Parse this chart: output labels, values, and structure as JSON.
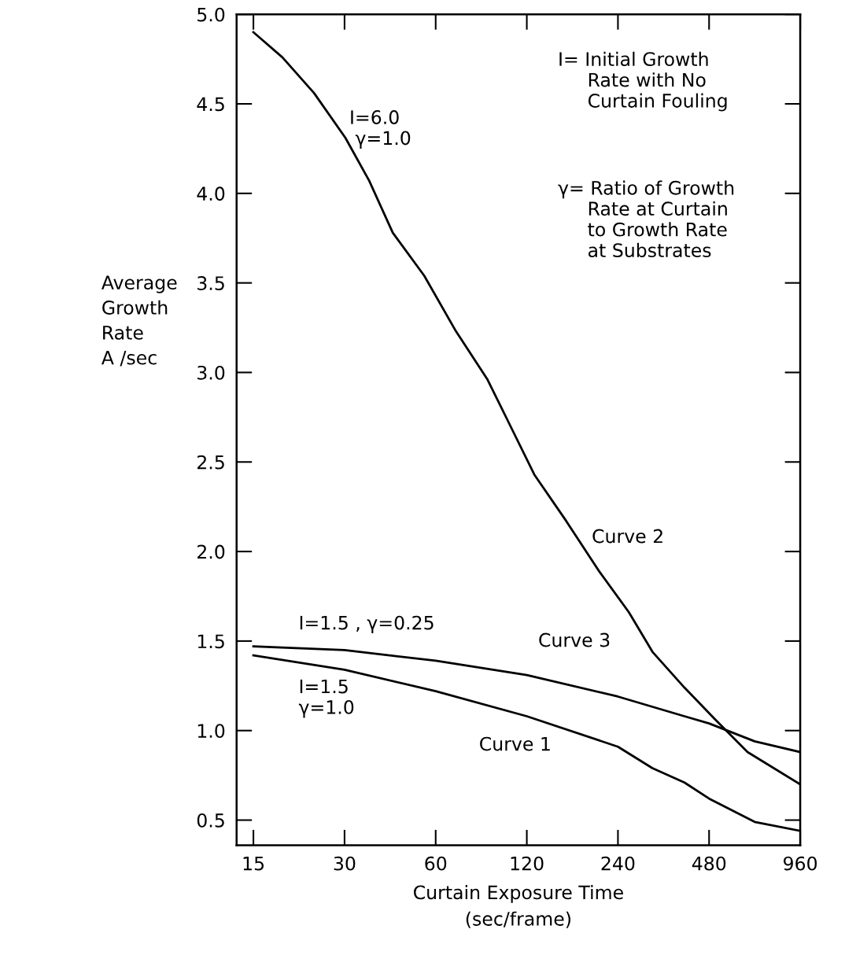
{
  "chart_data": {
    "type": "line",
    "xlabel": "Curtain Exposure Time\n(sec/frame)",
    "ylabel": "Average\nGrowth\nRate\nA /sec",
    "log": "x",
    "grid": false,
    "legend": false,
    "marker": "none",
    "line_style": "solid",
    "xlim": [
      13.2,
      960
    ],
    "ylim": [
      0.36,
      5.0
    ],
    "xticks": [
      15,
      30,
      60,
      120,
      240,
      480,
      960
    ],
    "yticks": [
      {
        "value": 0.5,
        "label": "0.5"
      },
      {
        "value": 1.0,
        "label": "1.0"
      },
      {
        "value": 1.5,
        "label": "1.5"
      },
      {
        "value": 2.0,
        "label": "2.0"
      },
      {
        "value": 2.5,
        "label": "2.5"
      },
      {
        "value": 3.0,
        "label": "3.0"
      },
      {
        "value": 3.5,
        "label": "3.5"
      },
      {
        "value": 4.0,
        "label": "4.0"
      },
      {
        "value": 4.5,
        "label": "4.5"
      },
      {
        "value": 5.0,
        "label": "5.0"
      }
    ],
    "series": [
      {
        "name": "Curve 2",
        "color": "#000000",
        "x": [
          15,
          18.7,
          23.8,
          30.2,
          36.2,
          43.3,
          55,
          70,
          89,
          106,
          127,
          162,
          206,
          261,
          312,
          398,
          504,
          643,
          960
        ],
        "values": [
          4.9,
          4.76,
          4.56,
          4.31,
          4.07,
          3.78,
          3.54,
          3.23,
          2.96,
          2.7,
          2.43,
          2.17,
          1.9,
          1.66,
          1.44,
          1.24,
          1.06,
          0.88,
          0.7
        ]
      },
      {
        "name": "Curve 3",
        "color": "#000000",
        "x": [
          15,
          30,
          60,
          120,
          240,
          398,
          480,
          679,
          960
        ],
        "values": [
          1.47,
          1.45,
          1.39,
          1.31,
          1.19,
          1.08,
          1.04,
          0.94,
          0.88
        ]
      },
      {
        "name": "Curve 1",
        "color": "#000000",
        "x": [
          15,
          30,
          60,
          120,
          240,
          312,
          398,
          480,
          679,
          960
        ],
        "values": [
          1.42,
          1.34,
          1.22,
          1.08,
          0.91,
          0.79,
          0.71,
          0.62,
          0.49,
          0.44
        ]
      }
    ],
    "annotations": [
      "I=6.0\n γ=1.0",
      "I=1.5 , γ=0.25",
      "I=1.5\nγ=1.0",
      "I= Initial Growth\n     Rate with No\n     Curtain Fouling",
      "γ= Ratio of Growth\n     Rate at Curtain\n     to Growth Rate\n     at Substrates"
    ]
  }
}
